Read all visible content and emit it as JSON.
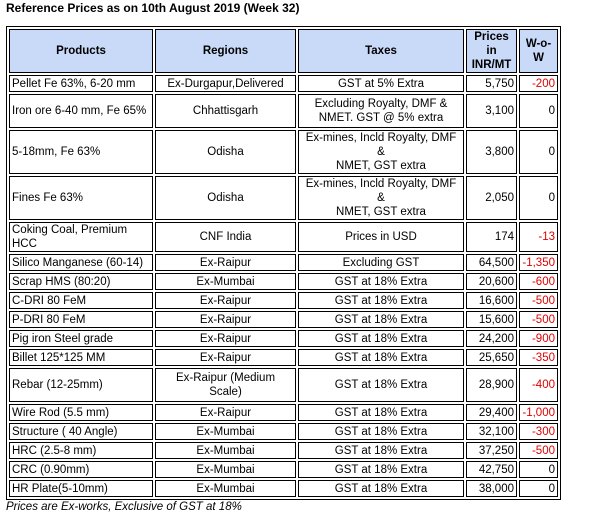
{
  "title": "Reference Prices as on 10th August 2019 (Week 32)",
  "headers": [
    "Products",
    "Regions",
    "Taxes",
    "Prices in\nINR/MT",
    "W-o-W"
  ],
  "rows": [
    {
      "product": "Pellet Fe 63%, 6-20 mm",
      "region": "Ex-Durgapur,Delivered",
      "taxes": "GST at 5% Extra",
      "price": "5,750",
      "wow": "-200",
      "h": 17
    },
    {
      "product": "Iron ore 6-40 mm, Fe 65%",
      "region": "Chhattisgarh",
      "taxes": "Excluding Royalty, DMF &\nNMET. GST @ 5% extra",
      "price": "3,100",
      "wow": "0",
      "h": 34
    },
    {
      "product": "5-18mm, Fe 63%",
      "region": "Odisha",
      "taxes": "Ex-mines, Incld Royalty, DMF &\nNMET, GST extra",
      "price": "3,800",
      "wow": "0",
      "h": 34
    },
    {
      "product": "Fines Fe 63%",
      "region": "Odisha",
      "taxes": "Ex-mines, Incld Royalty, DMF &\nNMET, GST extra",
      "price": "2,050",
      "wow": "0",
      "h": 34
    },
    {
      "product": "Coking Coal, Premium\nHCC",
      "region": "CNF India",
      "taxes": "Prices in USD",
      "price": "174",
      "wow": "-13",
      "h": 30
    },
    {
      "product": "Silico Manganese (60-14)",
      "region": "Ex-Raipur",
      "taxes": "Excluding GST",
      "price": "64,500",
      "wow": "-1,350",
      "h": 17
    },
    {
      "product": "Scrap HMS (80:20)",
      "region": "Ex-Mumbai",
      "taxes": "GST at 18% Extra",
      "price": "20,600",
      "wow": "-600",
      "h": 17
    },
    {
      "product": "C-DRI 80 FeM",
      "region": "Ex-Raipur",
      "taxes": "GST at 18% Extra",
      "price": "16,600",
      "wow": "-500",
      "h": 17
    },
    {
      "product": "P-DRI 80 FeM",
      "region": "Ex-Raipur",
      "taxes": "GST at 18% Extra",
      "price": "15,600",
      "wow": "-500",
      "h": 17
    },
    {
      "product": "Pig iron Steel grade",
      "region": "Ex-Raipur",
      "taxes": "GST at 18% Extra",
      "price": "24,200",
      "wow": "-900",
      "h": 17
    },
    {
      "product": "Billet 125*125 MM",
      "region": "Ex-Raipur",
      "taxes": "GST at 18% Extra",
      "price": "25,650",
      "wow": "-350",
      "h": 17
    },
    {
      "product": "Rebar (12-25mm)",
      "region": "Ex-Raipur (Medium\nScale)",
      "taxes": "GST at 18% Extra",
      "price": "28,900",
      "wow": "-400",
      "h": 34
    },
    {
      "product": "Wire Rod (5.5 mm)",
      "region": "Ex-Raipur",
      "taxes": "GST at 18% Extra",
      "price": "29,400",
      "wow": "-1,000",
      "h": 17
    },
    {
      "product": "Structure ( 40 Angle)",
      "region": "Ex-Mumbai",
      "taxes": "GST at 18% Extra",
      "price": "32,100",
      "wow": "-300",
      "h": 17
    },
    {
      "product": "HRC (2.5-8 mm)",
      "region": "Ex-Mumbai",
      "taxes": "GST at 18% Extra",
      "price": "37,250",
      "wow": "-500",
      "h": 17
    },
    {
      "product": "CRC (0.90mm)",
      "region": "Ex-Mumbai",
      "taxes": "GST at 18% Extra",
      "price": "42,750",
      "wow": "0",
      "h": 17
    },
    {
      "product": "HR Plate(5-10mm)",
      "region": "Ex-Mumbai",
      "taxes": "GST at 18% Extra",
      "price": "38,000",
      "wow": "0",
      "h": 17
    }
  ],
  "footnote": "Prices are Ex-works, Exclusive of GST at 18%",
  "colors": {
    "header_bg": "#c9daf8",
    "negative": "#e00000"
  }
}
